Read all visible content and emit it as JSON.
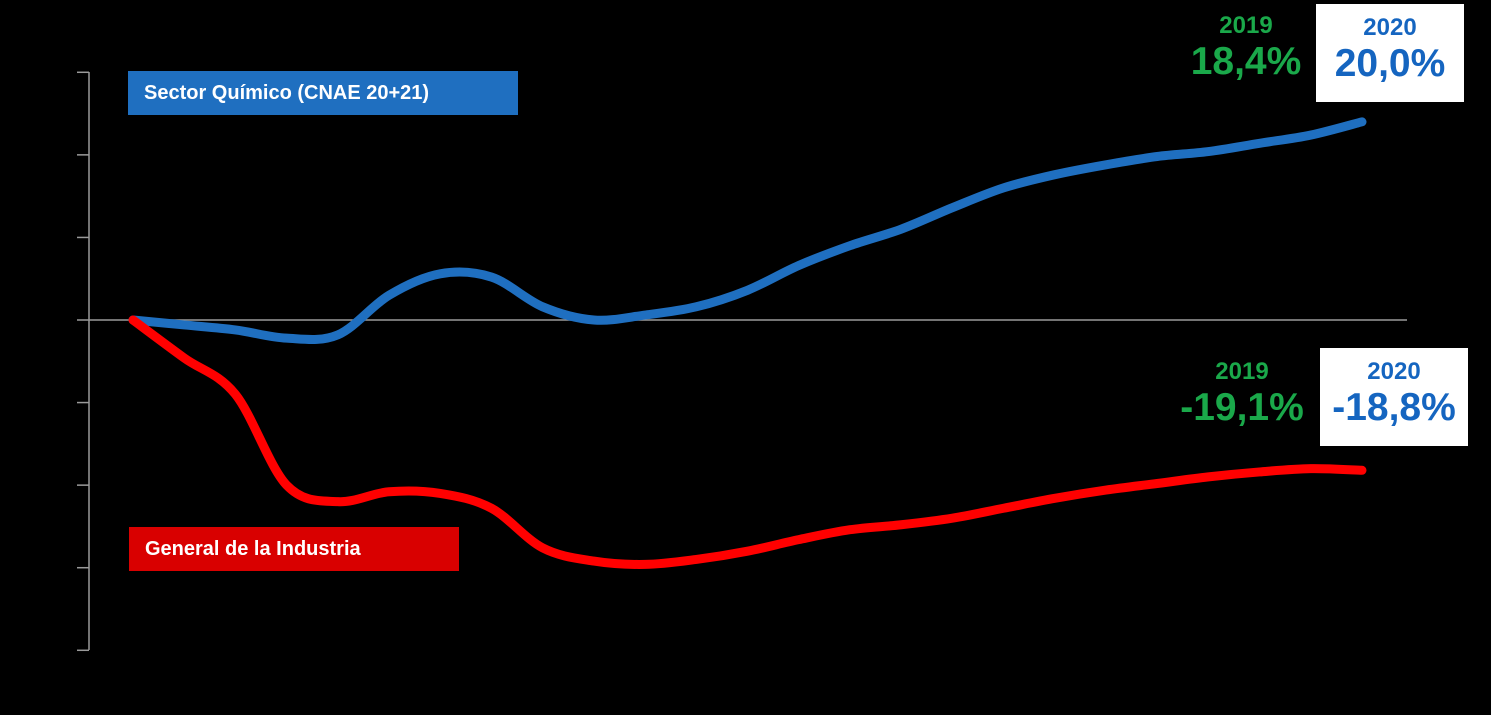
{
  "chart_data": {
    "type": "line",
    "title": "",
    "xlabel": "",
    "ylabel": "",
    "grid": false,
    "x": [
      0,
      1,
      2,
      3,
      4,
      5,
      6,
      7,
      8,
      9,
      10,
      11,
      12,
      13,
      14,
      15,
      16,
      17,
      18,
      19,
      20,
      21,
      22,
      23,
      24
    ],
    "ylim": [
      -20.0,
      15.0
    ],
    "series": [
      {
        "name": "Sector Químico (CNAE 20+21)",
        "color": "#1f6fc0",
        "values": [
          0.0,
          -0.3,
          -0.6,
          -1.1,
          -0.9,
          1.5,
          2.8,
          2.6,
          0.8,
          0.0,
          0.3,
          0.8,
          1.8,
          3.3,
          4.5,
          5.5,
          6.8,
          8.0,
          8.8,
          9.4,
          9.9,
          10.2,
          10.7,
          11.2,
          12.0
        ]
      },
      {
        "name": "General de la Industria",
        "color": "#ff0000",
        "values": [
          0.0,
          -2.3,
          -4.5,
          -10.0,
          -11.0,
          -10.4,
          -10.5,
          -11.4,
          -13.8,
          -14.6,
          -14.8,
          -14.5,
          -14.0,
          -13.3,
          -12.7,
          -12.4,
          -12.0,
          -11.4,
          -10.8,
          -10.3,
          -9.9,
          -9.5,
          -9.2,
          -9.0,
          -9.1
        ]
      }
    ]
  },
  "labels": {
    "blue_series": "Sector Químico (CNAE 20+21)",
    "red_series": "General de la Industria"
  },
  "annotations": {
    "top": {
      "year_2019": "2019",
      "value_2019": "18,4%",
      "year_2020": "2020",
      "value_2020": "20,0%"
    },
    "bottom": {
      "year_2019": "2019",
      "value_2019": "-19,1%",
      "year_2020": "2020",
      "value_2020": "-18,8%"
    }
  },
  "colors": {
    "background": "#000000",
    "axis": "#9a9a9a",
    "green": "#1aa84a",
    "blue_text": "#1565c0"
  }
}
